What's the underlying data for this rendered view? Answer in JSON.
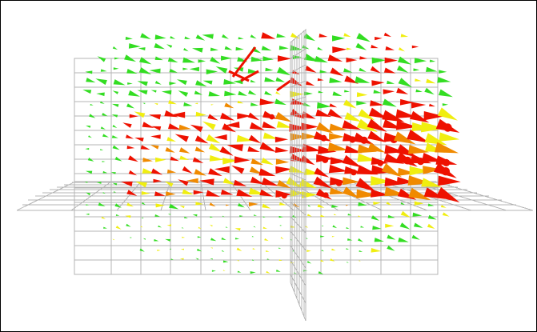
{
  "scene": {
    "background_color": "#ffffff",
    "border_color": "#000000",
    "grid_color": "#b4b4b4",
    "glyph_colors": {
      "low": "#33dd22",
      "mid": "#f0ee10",
      "high": "#ee1100",
      "transition": "#f08a00"
    }
  }
}
